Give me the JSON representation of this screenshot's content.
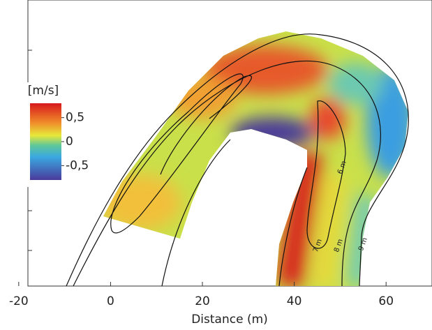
{
  "chart_data": {
    "type": "heatmap",
    "x_label": "Distance (m)",
    "xlim": [
      -18,
      70
    ],
    "xticks": [
      -20,
      0,
      20,
      40,
      60
    ],
    "colorbar_label": "[m/s]",
    "clim": [
      -0.8,
      0.8
    ],
    "colorbar_ticks": [
      {
        "value": 0.5,
        "label": "0,5"
      },
      0,
      {
        "value": -0.5,
        "label": "-0,5"
      }
    ],
    "annotations": [
      "6 m",
      "7 m",
      "8 m",
      "9 m"
    ]
  }
}
